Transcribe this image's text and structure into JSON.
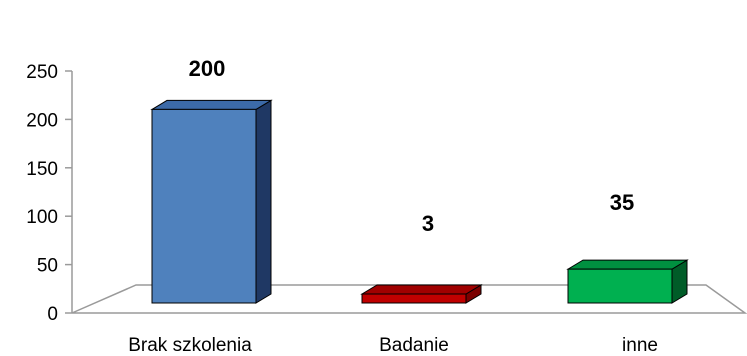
{
  "chart_data": {
    "type": "bar",
    "categories": [
      "Brak szkolenia",
      "Badanie",
      "inne"
    ],
    "values": [
      200,
      3,
      35
    ],
    "data_labels": [
      "200",
      "3",
      "35"
    ],
    "colors": [
      "#4F81BD",
      "#C00000",
      "#00B050"
    ],
    "side_colors": [
      "#1F3864",
      "#7B0000",
      "#005C28"
    ],
    "top_colors": [
      "#3C6AA8",
      "#A00000",
      "#009040"
    ],
    "y_ticks": [
      "0",
      "50",
      "100",
      "150",
      "200",
      "250"
    ],
    "ylim": [
      0,
      250
    ],
    "grid": false,
    "title": "",
    "xlabel": "",
    "ylabel": ""
  }
}
